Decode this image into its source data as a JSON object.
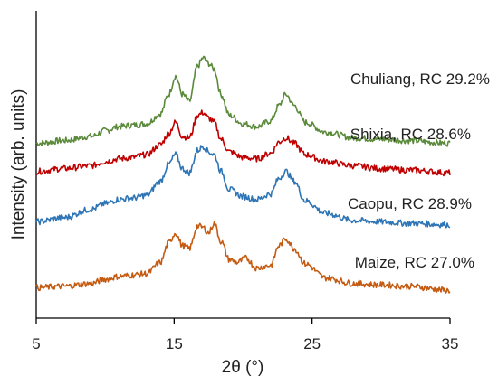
{
  "chart_data": {
    "type": "line",
    "title": "",
    "xlabel": "2θ (°)",
    "ylabel": "Intensity (arb. units)",
    "xlim": [
      5,
      35
    ],
    "ylim": [
      0,
      10
    ],
    "x_ticks": [
      "5",
      "15",
      "25",
      "35"
    ],
    "y_ticks_shown": false,
    "grid": false,
    "legend": "inline labels at right of each curve",
    "series": [
      {
        "name": "Chuliang, RC 29.2%",
        "color": "#5a8a3a",
        "points": [
          [
            5,
            5.85
          ],
          [
            7,
            5.95
          ],
          [
            9,
            6.1
          ],
          [
            10,
            6.3
          ],
          [
            11,
            6.45
          ],
          [
            12,
            6.5
          ],
          [
            13,
            6.55
          ],
          [
            14,
            6.9
          ],
          [
            14.6,
            7.6
          ],
          [
            15.1,
            8.25
          ],
          [
            15.6,
            7.6
          ],
          [
            16.1,
            7.35
          ],
          [
            16.7,
            8.6
          ],
          [
            17.1,
            8.9
          ],
          [
            17.5,
            8.7
          ],
          [
            17.9,
            8.5
          ],
          [
            18.4,
            7.6
          ],
          [
            19,
            6.85
          ],
          [
            20,
            6.55
          ],
          [
            21,
            6.45
          ],
          [
            22,
            6.65
          ],
          [
            22.6,
            7.2
          ],
          [
            23.1,
            7.6
          ],
          [
            23.7,
            7.2
          ],
          [
            24.5,
            6.6
          ],
          [
            26,
            6.25
          ],
          [
            28,
            6.05
          ],
          [
            30,
            6.0
          ],
          [
            32,
            5.95
          ],
          [
            35,
            5.85
          ]
        ]
      },
      {
        "name": "Shixia, RC 28.6%",
        "color": "#c00000",
        "points": [
          [
            5,
            4.85
          ],
          [
            7,
            4.95
          ],
          [
            9,
            5.05
          ],
          [
            10,
            5.2
          ],
          [
            11,
            5.3
          ],
          [
            12,
            5.35
          ],
          [
            13,
            5.45
          ],
          [
            14,
            5.8
          ],
          [
            14.6,
            6.2
          ],
          [
            15.1,
            6.6
          ],
          [
            15.6,
            6.1
          ],
          [
            16.1,
            6.05
          ],
          [
            16.7,
            6.85
          ],
          [
            17.1,
            6.95
          ],
          [
            17.5,
            6.75
          ],
          [
            17.9,
            6.6
          ],
          [
            18.4,
            6.0
          ],
          [
            19,
            5.55
          ],
          [
            20,
            5.35
          ],
          [
            21,
            5.3
          ],
          [
            22,
            5.5
          ],
          [
            22.6,
            5.9
          ],
          [
            23.1,
            6.05
          ],
          [
            23.7,
            5.85
          ],
          [
            24.5,
            5.45
          ],
          [
            26,
            5.2
          ],
          [
            28,
            5.05
          ],
          [
            30,
            4.95
          ],
          [
            32,
            4.9
          ],
          [
            35,
            4.8
          ]
        ]
      },
      {
        "name": "Caopu, RC 28.9%",
        "color": "#2e75b6",
        "points": [
          [
            5,
            3.05
          ],
          [
            7,
            3.2
          ],
          [
            9,
            3.5
          ],
          [
            10,
            3.7
          ],
          [
            11,
            3.85
          ],
          [
            12,
            3.9
          ],
          [
            13,
            4.0
          ],
          [
            14,
            4.5
          ],
          [
            14.6,
            5.1
          ],
          [
            15.1,
            5.45
          ],
          [
            15.6,
            4.95
          ],
          [
            16.1,
            4.8
          ],
          [
            16.7,
            5.6
          ],
          [
            17.1,
            5.75
          ],
          [
            17.5,
            5.55
          ],
          [
            17.9,
            5.45
          ],
          [
            18.4,
            4.85
          ],
          [
            19,
            4.2
          ],
          [
            20,
            3.95
          ],
          [
            21,
            3.85
          ],
          [
            22,
            4.05
          ],
          [
            22.6,
            4.6
          ],
          [
            23.1,
            4.85
          ],
          [
            23.7,
            4.5
          ],
          [
            24.5,
            3.8
          ],
          [
            26,
            3.35
          ],
          [
            28,
            3.1
          ],
          [
            30,
            3.05
          ],
          [
            32,
            3.0
          ],
          [
            35,
            2.95
          ]
        ]
      },
      {
        "name": "Maize, RC 27.0%",
        "color": "#c55a11",
        "points": [
          [
            5,
            0.7
          ],
          [
            7,
            0.75
          ],
          [
            9,
            0.85
          ],
          [
            10,
            1.0
          ],
          [
            11,
            1.1
          ],
          [
            12,
            1.15
          ],
          [
            13,
            1.2
          ],
          [
            14,
            1.6
          ],
          [
            14.6,
            2.3
          ],
          [
            15.1,
            2.65
          ],
          [
            15.6,
            2.2
          ],
          [
            16.1,
            2.1
          ],
          [
            16.7,
            2.9
          ],
          [
            17.1,
            2.85
          ],
          [
            17.5,
            2.65
          ],
          [
            17.9,
            3.0
          ],
          [
            18.4,
            2.35
          ],
          [
            19,
            1.7
          ],
          [
            19.6,
            1.6
          ],
          [
            20.2,
            1.75
          ],
          [
            21,
            1.4
          ],
          [
            22,
            1.5
          ],
          [
            22.6,
            2.2
          ],
          [
            23.1,
            2.45
          ],
          [
            23.7,
            2.1
          ],
          [
            24.5,
            1.55
          ],
          [
            26,
            1.05
          ],
          [
            28,
            0.85
          ],
          [
            30,
            0.8
          ],
          [
            32,
            0.75
          ],
          [
            35,
            0.6
          ]
        ]
      }
    ]
  }
}
